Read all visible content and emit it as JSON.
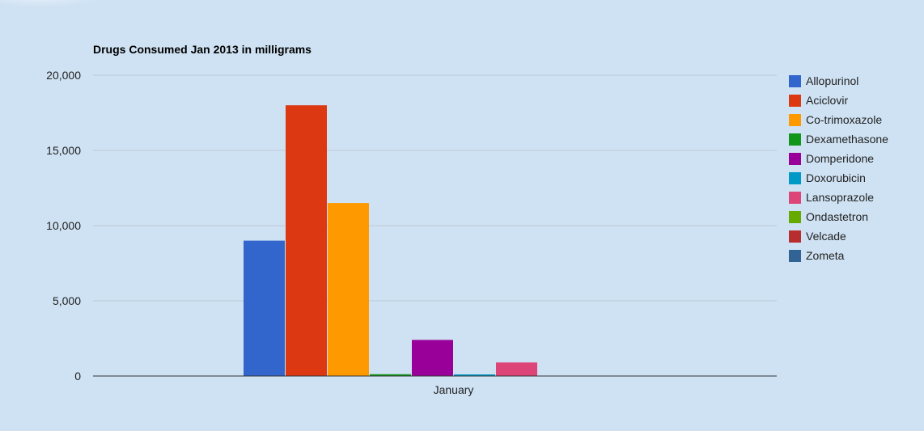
{
  "chart_data": {
    "type": "bar",
    "title": "Drugs Consumed Jan 2013 in milligrams",
    "xlabel": "",
    "ylabel": "",
    "categories": [
      "January"
    ],
    "ylim": [
      0,
      20000
    ],
    "yticks": [
      0,
      5000,
      10000,
      15000,
      20000
    ],
    "ytick_labels": [
      "0",
      "5,000",
      "10,000",
      "15,000",
      "20,000"
    ],
    "grid": true,
    "legend_position": "right",
    "series": [
      {
        "name": "Allopurinol",
        "color": "#3366cc",
        "values": [
          9000
        ]
      },
      {
        "name": "Aciclovir",
        "color": "#dc3912",
        "values": [
          18000
        ]
      },
      {
        "name": "Co-trimoxazole",
        "color": "#ff9900",
        "values": [
          11500
        ]
      },
      {
        "name": "Dexamethasone",
        "color": "#109618",
        "values": [
          120
        ]
      },
      {
        "name": "Domperidone",
        "color": "#990099",
        "values": [
          2400
        ]
      },
      {
        "name": "Doxorubicin",
        "color": "#0099c6",
        "values": [
          40
        ]
      },
      {
        "name": "Lansoprazole",
        "color": "#dd4477",
        "values": [
          900
        ]
      },
      {
        "name": "Ondastetron",
        "color": "#66aa00",
        "values": [
          0
        ]
      },
      {
        "name": "Velcade",
        "color": "#b82e2e",
        "values": [
          0
        ]
      },
      {
        "name": "Zometa",
        "color": "#316395",
        "values": [
          0
        ]
      }
    ]
  }
}
